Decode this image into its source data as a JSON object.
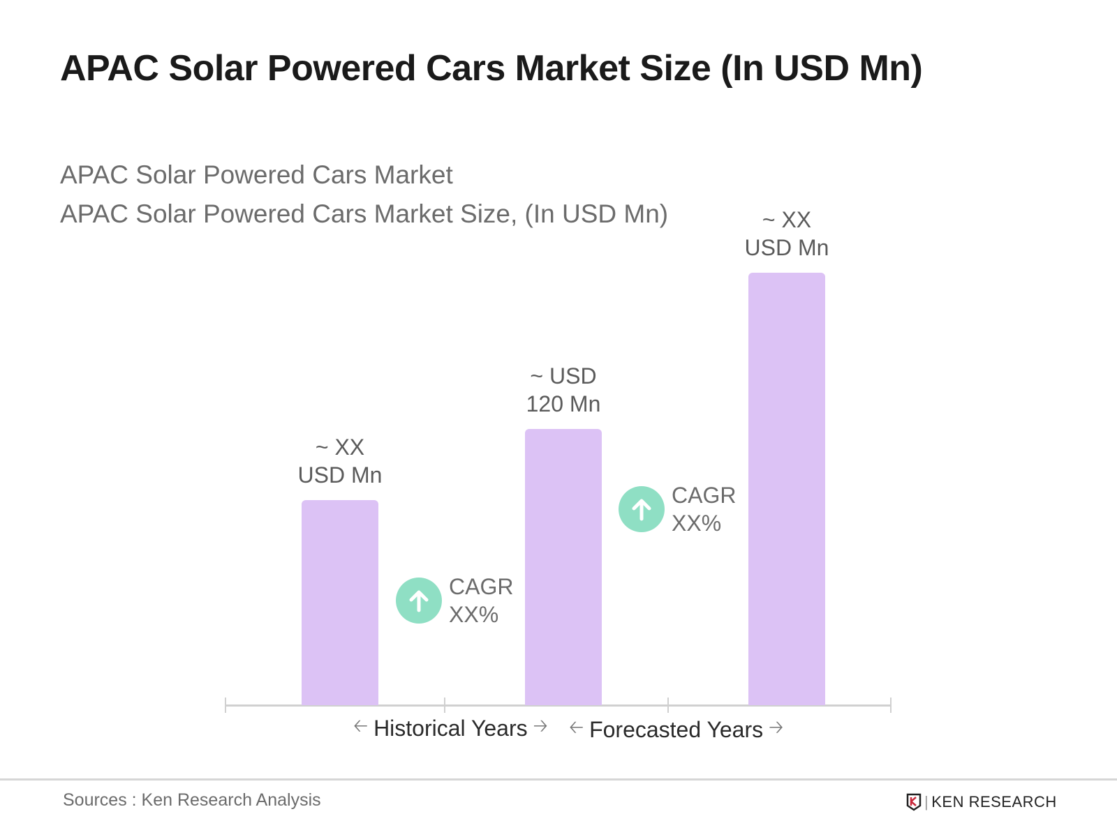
{
  "chart_data": {
    "type": "bar",
    "title": "APAC Solar Powered Cars Market Size (In USD Mn)",
    "subtitle_1": "APAC Solar Powered Cars Market",
    "subtitle_2": "APAC Solar Powered Cars Market Size, (In USD Mn)",
    "categories": [
      "",
      "",
      ""
    ],
    "values": [
      89,
      120,
      188
    ],
    "data_labels": [
      {
        "line1": "~ XX",
        "line2": "USD Mn"
      },
      {
        "line1": "~  USD",
        "line2": "120 Mn"
      },
      {
        "line1": "~ XX",
        "line2": "USD Mn"
      }
    ],
    "cagr_annotations": [
      {
        "label": "CAGR",
        "value": "XX%"
      },
      {
        "label": "CAGR",
        "value": "XX%"
      }
    ],
    "periods": [
      "Historical Years",
      "Forecasted Years"
    ],
    "bar_color": "#dcc2f5",
    "cagr_icon_color": "#8fdfc4",
    "grid": false,
    "legend": "none"
  },
  "footer": {
    "source": "Sources : Ken Research Analysis",
    "logo_text": "KEN RESEARCH"
  },
  "icons": {
    "cagr": "arrow-up-icon",
    "period_left": "arrow-left-icon",
    "period_right": "arrow-right-icon"
  }
}
